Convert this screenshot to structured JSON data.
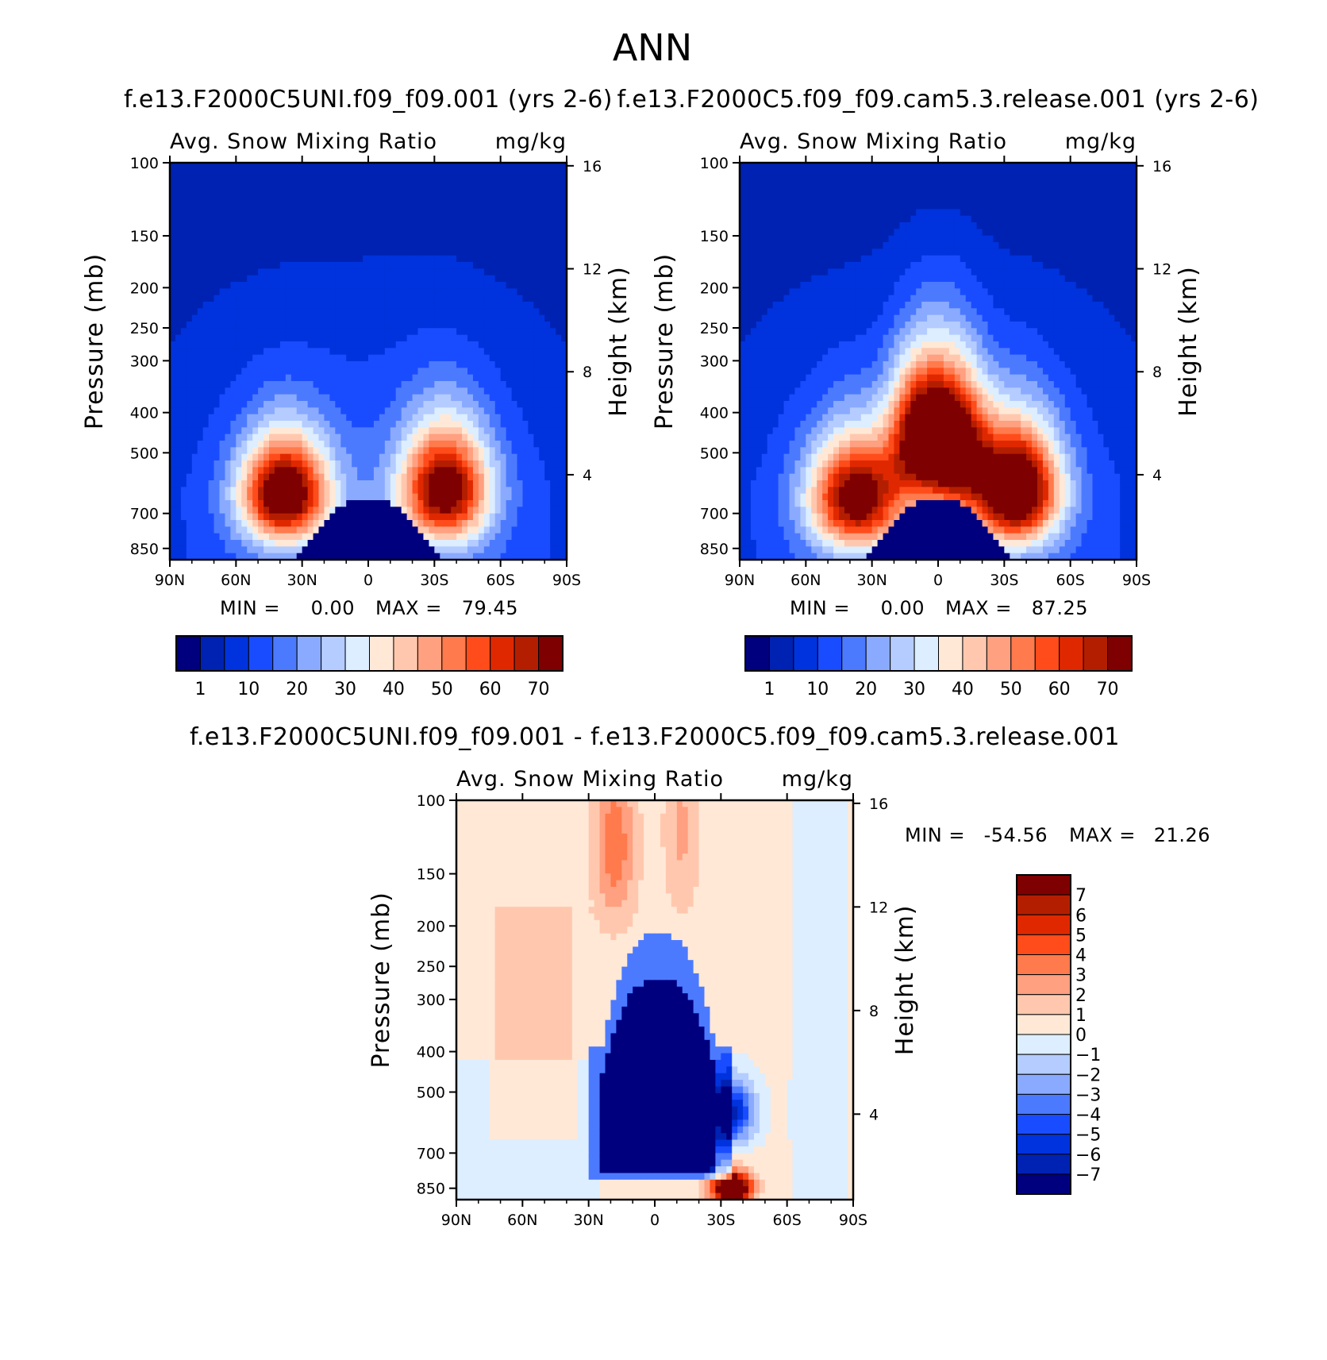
{
  "chart_data": {
    "type": "heatmap",
    "title": "ANN",
    "panels": [
      {
        "id": "test",
        "title": "f.e13.F2000C5UNI.f09_f09.001 (yrs 2-6)",
        "variable": "Avg. Snow Mixing Ratio",
        "units": "mg/kg",
        "ylabel": "Pressure (mb)",
        "y2label": "Height (km)",
        "x_ticks": [
          "90N",
          "60N",
          "30N",
          "0",
          "30S",
          "60S",
          "90S"
        ],
        "x_range": [
          90,
          -90
        ],
        "y_ticks": [
          100,
          150,
          200,
          250,
          300,
          400,
          500,
          700,
          850
        ],
        "y_range": [
          100,
          1000
        ],
        "y2_ticks": [
          16,
          12,
          8,
          4
        ],
        "min_label": "MIN =",
        "min_value": "0.00",
        "max_label": "MAX =",
        "max_value": "79.45",
        "lobes": [
          {
            "lat": 38,
            "p": 625,
            "value": 79.45,
            "sx": 14,
            "sp": 130
          },
          {
            "lat": -35,
            "p": 610,
            "value": 75,
            "sx": 14,
            "sp": 140
          }
        ],
        "colorbar": {
          "levels": [
            1,
            5,
            10,
            15,
            20,
            25,
            30,
            35,
            40,
            45,
            50,
            55,
            60,
            65,
            70
          ],
          "labels": [
            "1",
            "10",
            "20",
            "30",
            "40",
            "50",
            "60",
            "70"
          ]
        }
      },
      {
        "id": "control",
        "title": "f.e13.F2000C5.f09_f09.cam5.3.release.001 (yrs 2-6)",
        "variable": "Avg. Snow Mixing Ratio",
        "units": "mg/kg",
        "ylabel": "Pressure (mb)",
        "y2label": "Height (km)",
        "x_ticks": [
          "90N",
          "60N",
          "30N",
          "0",
          "30S",
          "60S",
          "90S"
        ],
        "x_range": [
          90,
          -90
        ],
        "y_ticks": [
          100,
          150,
          200,
          250,
          300,
          400,
          500,
          700,
          850
        ],
        "y_range": [
          100,
          1000
        ],
        "y2_ticks": [
          16,
          12,
          8,
          4
        ],
        "min_label": "MIN =",
        "min_value": "0.00",
        "max_label": "MAX =",
        "max_value": "87.25",
        "lobes": [
          {
            "lat": 37,
            "p": 640,
            "value": 75,
            "sx": 15,
            "sp": 140
          },
          {
            "lat": 8,
            "p": 450,
            "value": 70,
            "sx": 10,
            "sp": 120
          },
          {
            "lat": -8,
            "p": 470,
            "value": 68,
            "sx": 10,
            "sp": 130
          },
          {
            "lat": -35,
            "p": 610,
            "value": 87.25,
            "sx": 14,
            "sp": 140
          }
        ],
        "colorbar": {
          "levels": [
            1,
            5,
            10,
            15,
            20,
            25,
            30,
            35,
            40,
            45,
            50,
            55,
            60,
            65,
            70
          ],
          "labels": [
            "1",
            "10",
            "20",
            "30",
            "40",
            "50",
            "60",
            "70"
          ]
        }
      },
      {
        "id": "difference",
        "title": "f.e13.F2000C5UNI.f09_f09.001 - f.e13.F2000C5.f09_f09.cam5.3.release.001",
        "variable": "Avg. Snow Mixing Ratio",
        "units": "mg/kg",
        "ylabel": "Pressure (mb)",
        "y2label": "Height (km)",
        "x_ticks": [
          "90N",
          "60N",
          "30N",
          "0",
          "30S",
          "60S",
          "90S"
        ],
        "x_range": [
          90,
          -90
        ],
        "y_ticks": [
          100,
          150,
          200,
          250,
          300,
          400,
          500,
          700,
          850
        ],
        "y_range": [
          100,
          1000
        ],
        "y2_ticks": [
          16,
          12,
          8,
          4
        ],
        "min_label": "MIN =",
        "min_value": "-54.56",
        "max_label": "MAX =",
        "max_value": "21.26",
        "colorbar": {
          "levels": [
            -7,
            -6,
            -5,
            -4,
            -3,
            -2,
            -1,
            0,
            1,
            2,
            3,
            4,
            5,
            6,
            7
          ],
          "labels": [
            "7",
            "6",
            "5",
            "4",
            "3",
            "2",
            "1",
            "0",
            "-1",
            "-2",
            "-3",
            "-4",
            "-5",
            "-6",
            "-7"
          ]
        }
      }
    ],
    "colors": {
      "seq": [
        "#00007f",
        "#0022b2",
        "#0033dd",
        "#1a4cff",
        "#4c7aff",
        "#8aaaff",
        "#b4ccff",
        "#dceeff",
        "#ffe8d6",
        "#ffc8ae",
        "#ffa080",
        "#ff7a4c",
        "#ff4c1a",
        "#e02800",
        "#b41e00",
        "#7f0000"
      ],
      "div": [
        "#7f0000",
        "#b41e00",
        "#e02800",
        "#ff4c1a",
        "#ff7a4c",
        "#ffa080",
        "#ffc8ae",
        "#ffe8d6",
        "#dceeff",
        "#b4ccff",
        "#8aaaff",
        "#4c7aff",
        "#1a4cff",
        "#0033dd",
        "#0022b2",
        "#00007f"
      ]
    }
  }
}
